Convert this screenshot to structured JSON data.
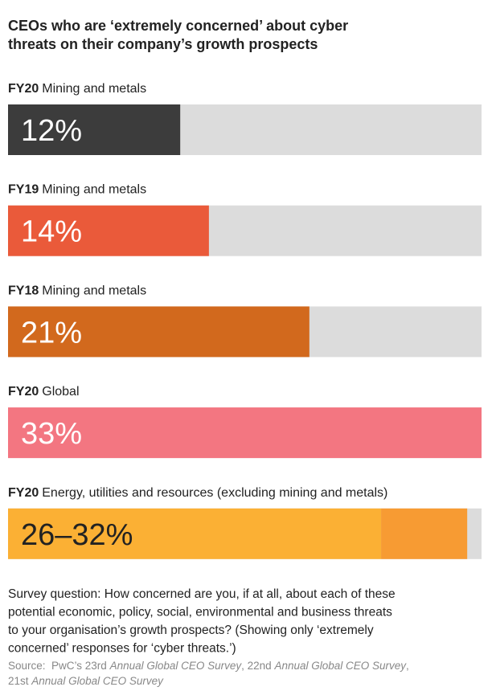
{
  "chart_data": {
    "type": "bar",
    "orientation": "horizontal",
    "title": [
      "CEOs who are ‘extremely concerned’ about cyber",
      "threats on their company’s growth prospects"
    ],
    "categories": [
      {
        "prefix": "FY20",
        "label": "Mining and metals"
      },
      {
        "prefix": "FY19",
        "label": "Mining and metals"
      },
      {
        "prefix": "FY18",
        "label": "Mining and metals"
      },
      {
        "prefix": "FY20",
        "label": "Global"
      },
      {
        "prefix": "FY20",
        "label": "Energy, utilities and resources (excluding mining and metals)"
      }
    ],
    "values": [
      12,
      14,
      21,
      33,
      [
        26,
        32
      ]
    ],
    "value_labels": [
      "12%",
      "14%",
      "21%",
      "33%",
      "26–32%"
    ],
    "colors": [
      "#3c3c3c",
      "#ea5a3a",
      "#d2691d",
      "#f37681",
      "#fbb034"
    ],
    "range_color": "#f79b33",
    "track_color": "#dcdcdc",
    "xlim": [
      0,
      33
    ],
    "note": [
      "Survey question: How concerned are you, if at all, about each of these",
      "potential economic, policy, social, environmental and business threats",
      "to your organisation’s growth prospects? (Showing only ‘extremely",
      "concerned’ responses for ‘cyber threats.’)"
    ],
    "source": [
      [
        {
          "text": "Source:  PwC’s 23rd ",
          "italic": false
        },
        {
          "text": "Annual Global CEO Survey",
          "italic": true
        },
        {
          "text": ", 22nd ",
          "italic": false
        },
        {
          "text": "Annual Global CEO Survey",
          "italic": true
        },
        {
          "text": ",",
          "italic": false
        }
      ],
      [
        {
          "text": "21st ",
          "italic": false
        },
        {
          "text": "Annual Global CEO Survey",
          "italic": true
        }
      ]
    ]
  }
}
